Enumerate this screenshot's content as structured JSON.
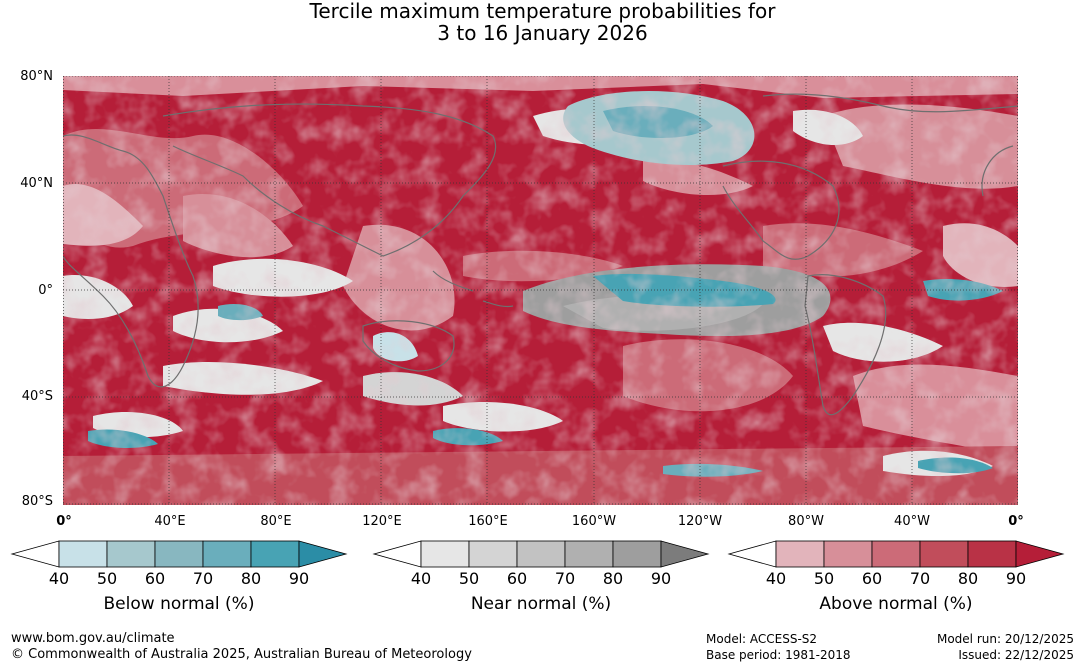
{
  "title": {
    "line1": "Tercile maximum temperature probabilities for",
    "line2": "3 to 16 January 2026"
  },
  "map": {
    "lat_labels": [
      "80°N",
      "40°N",
      "0°",
      "40°S",
      "80°S"
    ],
    "lon_labels": [
      "0°",
      "40°E",
      "80°E",
      "120°E",
      "160°E",
      "160°W",
      "120°W",
      "80°W",
      "40°W",
      "0°"
    ],
    "grid": "dotted",
    "ocean_color": "#b51e38"
  },
  "colorbars": {
    "below": {
      "title": "Below normal (%)",
      "ticks": [
        "40",
        "50",
        "60",
        "70",
        "80",
        "90"
      ],
      "colors": [
        "#ffffff",
        "#c8e1e8",
        "#a6c8cd",
        "#88b7c0",
        "#6aaebc",
        "#48a3b4",
        "#2b8da6"
      ]
    },
    "near": {
      "title": "Near normal (%)",
      "ticks": [
        "40",
        "50",
        "60",
        "70",
        "80",
        "90"
      ],
      "colors": [
        "#ffffff",
        "#e6e6e6",
        "#d4d4d4",
        "#c2c2c2",
        "#b0b0b0",
        "#9e9e9e",
        "#7c7c7c"
      ]
    },
    "above": {
      "title": "Above normal (%)",
      "ticks": [
        "40",
        "50",
        "60",
        "70",
        "80",
        "90"
      ],
      "colors": [
        "#ffffff",
        "#e2b4bb",
        "#d78f99",
        "#cc6b78",
        "#c14d5b",
        "#b93246",
        "#b51e38"
      ]
    }
  },
  "footer": {
    "website": "www.bom.gov.au/climate",
    "copyright": "© Commonwealth of Australia 2025, Australian Bureau of Meteorology",
    "model": "Model: ACCESS-S2",
    "base_period": "Base period: 1981-2018",
    "model_run": "Model run: 20/12/2025",
    "issued": "Issued: 22/12/2025"
  }
}
